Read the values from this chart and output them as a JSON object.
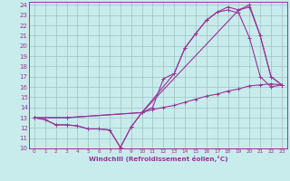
{
  "xlabel": "Windchill (Refroidissement éolien,°C)",
  "background_color": "#c8ecec",
  "grid_color": "#9ec0c0",
  "line_color": "#993399",
  "xlim": [
    -0.5,
    23.5
  ],
  "ylim": [
    10,
    24.3
  ],
  "xticks": [
    0,
    1,
    2,
    3,
    4,
    5,
    6,
    7,
    8,
    9,
    10,
    11,
    12,
    13,
    14,
    15,
    16,
    17,
    18,
    19,
    20,
    21,
    22,
    23
  ],
  "yticks": [
    10,
    11,
    12,
    13,
    14,
    15,
    16,
    17,
    18,
    19,
    20,
    21,
    22,
    23,
    24
  ],
  "line1_x": [
    0,
    1,
    2,
    3,
    4,
    5,
    6,
    7,
    8,
    9,
    10,
    11,
    12,
    13,
    14,
    15,
    16,
    17,
    18,
    19,
    20,
    21,
    22,
    23
  ],
  "line1_y": [
    13,
    12.8,
    12.3,
    12.3,
    12.2,
    11.9,
    11.9,
    11.8,
    10.1,
    12.1,
    13.5,
    13.8,
    14.0,
    14.2,
    14.5,
    14.8,
    15.1,
    15.3,
    15.6,
    15.8,
    16.1,
    16.2,
    16.3,
    16.2
  ],
  "line2_x": [
    0,
    1,
    2,
    3,
    4,
    5,
    6,
    7,
    8,
    9,
    10,
    11,
    12,
    13,
    14,
    15,
    16,
    17,
    18,
    19,
    20,
    21,
    22,
    23
  ],
  "line2_y": [
    13,
    12.8,
    12.3,
    12.3,
    12.2,
    11.9,
    11.9,
    11.8,
    10.1,
    12.1,
    13.5,
    14.0,
    16.8,
    17.3,
    19.8,
    21.2,
    22.5,
    23.3,
    23.5,
    23.2,
    20.8,
    17.0,
    16.0,
    16.2
  ],
  "line3_x": [
    0,
    3,
    10,
    13,
    14,
    15,
    16,
    17,
    18,
    19,
    20,
    21,
    22,
    23
  ],
  "line3_y": [
    13,
    13.0,
    13.5,
    17.3,
    19.8,
    21.2,
    22.5,
    23.3,
    23.8,
    23.5,
    23.8,
    21.0,
    17.0,
    16.2
  ],
  "line4_x": [
    0,
    3,
    10,
    19,
    20,
    21,
    22,
    23
  ],
  "line4_y": [
    13,
    13.0,
    13.5,
    23.5,
    24.0,
    21.0,
    17.0,
    16.2
  ]
}
